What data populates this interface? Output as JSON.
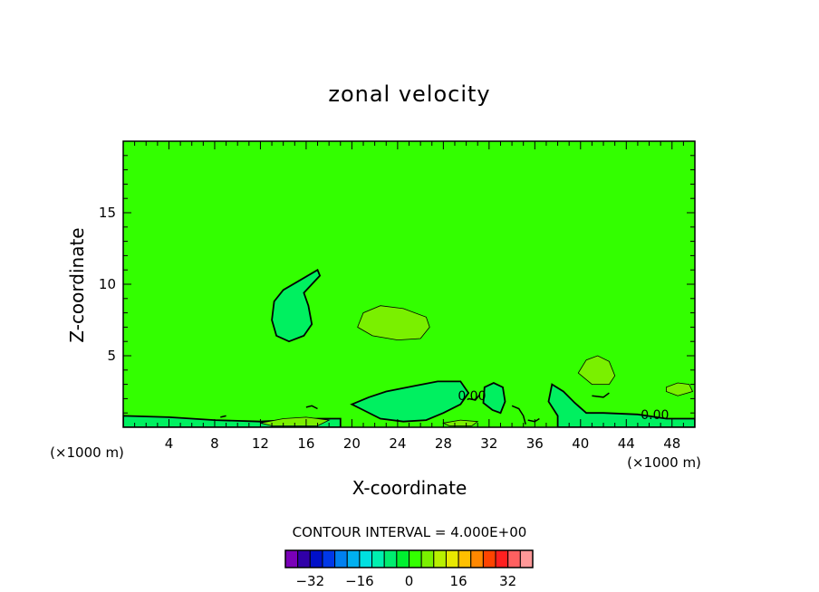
{
  "chart_data": {
    "type": "heatmap",
    "title": "zonal velocity",
    "xlabel": "X-coordinate",
    "ylabel": "Z-coordinate",
    "x_unit": "(×1000 m)",
    "y_unit": "(×1000 m)",
    "xlim": [
      0,
      50
    ],
    "ylim": [
      0,
      20
    ],
    "x_ticks": [
      4,
      8,
      12,
      16,
      20,
      24,
      28,
      32,
      36,
      40,
      44,
      48
    ],
    "y_ticks": [
      5,
      10,
      15
    ],
    "contour_interval_text": "CONTOUR INTERVAL = 4.000E+00",
    "background_color": "#33ff00",
    "colorbar": {
      "levels": [
        "#7a00b8",
        "#3000a8",
        "#0010c8",
        "#0038e8",
        "#0080f0",
        "#00b0f0",
        "#00e0e0",
        "#00f0b0",
        "#00ee70",
        "#00f030",
        "#33ff00",
        "#7af000",
        "#b8f000",
        "#e8e800",
        "#ffc000",
        "#ff8800",
        "#ff4400",
        "#ff2020",
        "#ff6060",
        "#ff9898"
      ],
      "tick_labels": [
        "-32",
        "-16",
        "0",
        "16",
        "32"
      ],
      "tick_values": [
        -32,
        -16,
        0,
        16,
        32
      ],
      "range": [
        -40,
        40
      ]
    },
    "contour_labels": [
      {
        "text": "0.00",
        "x": 30.5,
        "z": 2.2
      },
      {
        "text": "0.00",
        "x": 46.5,
        "z": 0.9
      }
    ],
    "regions": [
      {
        "value": -4,
        "color": "#00f060",
        "points": [
          [
            13.0,
            7.5
          ],
          [
            13.2,
            8.8
          ],
          [
            14.0,
            9.6
          ],
          [
            15.5,
            10.3
          ],
          [
            17.0,
            11.0
          ],
          [
            17.2,
            10.6
          ],
          [
            15.8,
            9.4
          ],
          [
            16.2,
            8.5
          ],
          [
            16.5,
            7.2
          ],
          [
            15.8,
            6.4
          ],
          [
            14.5,
            6.0
          ],
          [
            13.4,
            6.4
          ],
          [
            13.0,
            7.5
          ]
        ]
      },
      {
        "value": 4,
        "color": "#7af000",
        "points": [
          [
            20.5,
            7.0
          ],
          [
            21.0,
            8.0
          ],
          [
            22.5,
            8.5
          ],
          [
            24.5,
            8.3
          ],
          [
            26.5,
            7.7
          ],
          [
            26.8,
            7.0
          ],
          [
            26.0,
            6.2
          ],
          [
            24.0,
            6.1
          ],
          [
            21.8,
            6.4
          ],
          [
            20.5,
            7.0
          ]
        ]
      },
      {
        "value": 4,
        "color": "#7af000",
        "points": [
          [
            39.8,
            3.8
          ],
          [
            40.5,
            4.7
          ],
          [
            41.5,
            5.0
          ],
          [
            42.5,
            4.6
          ],
          [
            43.0,
            3.6
          ],
          [
            42.5,
            3.0
          ],
          [
            41.0,
            3.0
          ],
          [
            39.8,
            3.8
          ]
        ]
      },
      {
        "value": -4,
        "color": "#00f060",
        "points": [
          [
            21.5,
            2.1
          ],
          [
            23.0,
            2.5
          ],
          [
            25.5,
            2.9
          ],
          [
            27.5,
            3.2
          ],
          [
            29.5,
            3.2
          ],
          [
            30.2,
            2.4
          ],
          [
            29.5,
            1.6
          ],
          [
            28.0,
            1.0
          ],
          [
            26.5,
            0.5
          ],
          [
            24.5,
            0.4
          ],
          [
            22.5,
            0.6
          ],
          [
            21.0,
            1.2
          ],
          [
            20.0,
            1.6
          ],
          [
            21.5,
            2.1
          ]
        ]
      },
      {
        "value": -4,
        "color": "#00f060",
        "points": [
          [
            37.5,
            3.0
          ],
          [
            38.5,
            2.5
          ],
          [
            39.5,
            1.7
          ],
          [
            40.5,
            1.0
          ],
          [
            42.0,
            1.0
          ],
          [
            45.0,
            0.9
          ],
          [
            47.5,
            0.6
          ],
          [
            50.0,
            0.6
          ],
          [
            50.0,
            0.0
          ],
          [
            38.0,
            0.0
          ],
          [
            38.0,
            0.8
          ],
          [
            37.2,
            1.8
          ],
          [
            37.5,
            3.0
          ]
        ]
      },
      {
        "value": -4,
        "color": "#00f060",
        "points": [
          [
            31.6,
            2.8
          ],
          [
            32.4,
            3.1
          ],
          [
            33.2,
            2.8
          ],
          [
            33.4,
            1.8
          ],
          [
            33.0,
            1.0
          ],
          [
            32.3,
            1.2
          ],
          [
            31.5,
            1.7
          ],
          [
            31.6,
            2.8
          ]
        ]
      },
      {
        "value": -4,
        "color": "#00f060",
        "points": [
          [
            0,
            0.8
          ],
          [
            4,
            0.7
          ],
          [
            8,
            0.5
          ],
          [
            12,
            0.4
          ],
          [
            17,
            0.6
          ],
          [
            19,
            0.6
          ],
          [
            19,
            0
          ],
          [
            0,
            0
          ],
          [
            0,
            0.8
          ]
        ]
      },
      {
        "value": 4,
        "color": "#7af000",
        "points": [
          [
            47.5,
            2.8
          ],
          [
            48.5,
            3.1
          ],
          [
            49.5,
            3.0
          ],
          [
            49.8,
            2.5
          ],
          [
            48.5,
            2.2
          ],
          [
            47.5,
            2.5
          ],
          [
            47.5,
            2.8
          ]
        ]
      },
      {
        "value": 4,
        "color": "#7af000",
        "points": [
          [
            12,
            0.3
          ],
          [
            14,
            0.6
          ],
          [
            16,
            0.7
          ],
          [
            18,
            0.5
          ],
          [
            17,
            0.1
          ],
          [
            13,
            0.1
          ],
          [
            12,
            0.3
          ]
        ]
      },
      {
        "value": 4,
        "color": "#7af000",
        "points": [
          [
            28,
            0.3
          ],
          [
            29.5,
            0.5
          ],
          [
            31,
            0.4
          ],
          [
            30.5,
            0.1
          ],
          [
            28.5,
            0.1
          ],
          [
            28,
            0.3
          ]
        ]
      }
    ],
    "lines": [
      {
        "points": [
          [
            30.2,
            2.0
          ],
          [
            30.8,
            1.9
          ],
          [
            31.2,
            2.3
          ]
        ]
      },
      {
        "points": [
          [
            34.0,
            1.5
          ],
          [
            34.6,
            1.3
          ],
          [
            35.0,
            0.8
          ],
          [
            35.2,
            0.2
          ]
        ]
      },
      {
        "points": [
          [
            35.4,
            0.5
          ],
          [
            36.0,
            0.4
          ],
          [
            36.4,
            0.6
          ]
        ]
      },
      {
        "points": [
          [
            41.0,
            2.2
          ],
          [
            42.0,
            2.1
          ],
          [
            42.5,
            2.4
          ]
        ]
      },
      {
        "points": [
          [
            16.0,
            1.4
          ],
          [
            16.5,
            1.5
          ],
          [
            17.0,
            1.3
          ]
        ]
      },
      {
        "points": [
          [
            8.5,
            0.7
          ],
          [
            9.0,
            0.8
          ]
        ]
      }
    ]
  }
}
